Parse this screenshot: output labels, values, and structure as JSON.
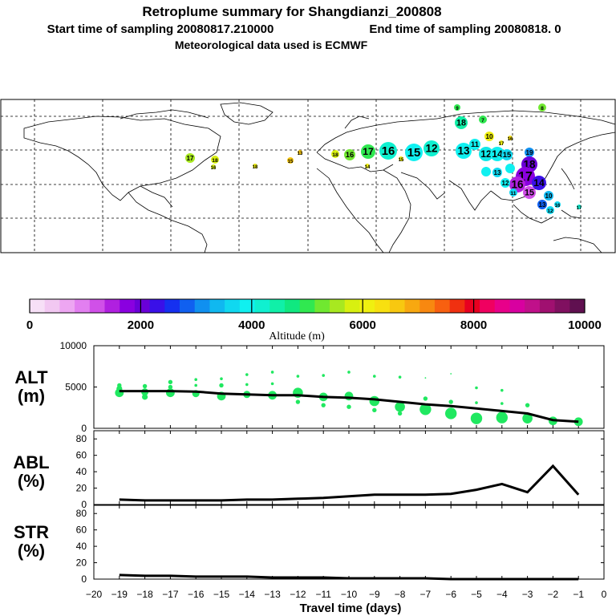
{
  "header": {
    "title": "Retroplume summary for Shangdianzi_200808",
    "start_time": "Start time of sampling 20080817.210000",
    "end_time": "End time of sampling 20080818.      0",
    "met_data": "Meteorological data used is ECMWF"
  },
  "map": {
    "description_labels": [
      "18",
      "17",
      "18",
      "16",
      "15",
      "13",
      "18",
      "16",
      "17",
      "16",
      "15",
      "12",
      "14",
      "15",
      "13",
      "11",
      "12",
      "14",
      "15",
      "10",
      "17",
      "16",
      "18",
      "9",
      "7",
      "8",
      "19",
      "18",
      "17",
      "16",
      "15",
      "14",
      "13",
      "12",
      "11",
      "10",
      "13",
      "12",
      "16",
      "17"
    ]
  },
  "colorbar": {
    "ticks": [
      "0",
      "2000",
      "4000",
      "6000",
      "8000",
      "10000"
    ],
    "label": "Altitude (m)",
    "colors": [
      "#f7e0f7",
      "#f2c8f2",
      "#eda6f2",
      "#e27ff0",
      "#d050e8",
      "#b020e0",
      "#8a00e0",
      "#6a00d8",
      "#3a10e8",
      "#1530f0",
      "#1060f0",
      "#1090f0",
      "#10b8f0",
      "#10d8f0",
      "#10f0f0",
      "#10f0d0",
      "#10f0a8",
      "#10e880",
      "#30e850",
      "#70e830",
      "#a8e820",
      "#d8f010",
      "#f0f010",
      "#f8e010",
      "#f8c810",
      "#f8a810",
      "#f88810",
      "#f86010",
      "#f03010",
      "#e80020",
      "#f00060",
      "#e8008a",
      "#d800a0",
      "#c0108a",
      "#a01070",
      "#801060",
      "#601050"
    ]
  },
  "chart_data": [
    {
      "type": "scatter+line",
      "name": "ALT",
      "ylabel": "ALT\n(m)",
      "ylabel_line1": "ALT",
      "ylabel_line2": "(m)",
      "ylim": [
        0,
        10000
      ],
      "yticks": [
        "0",
        "5000",
        "10000"
      ],
      "x": [
        -19,
        -18,
        -17,
        -16,
        -15,
        -14,
        -13,
        -12,
        -11,
        -10,
        -9,
        -8,
        -7,
        -6,
        -5,
        -4,
        -3,
        -2,
        -1
      ],
      "line_values": [
        4500,
        4500,
        4500,
        4450,
        4200,
        4100,
        4000,
        4000,
        3800,
        3700,
        3500,
        3200,
        2900,
        2700,
        2400,
        2100,
        1800,
        1000,
        800
      ],
      "points": [
        {
          "x": -19,
          "y": 4300,
          "s": 6
        },
        {
          "x": -19,
          "y": 4800,
          "s": 4
        },
        {
          "x": -19,
          "y": 5200,
          "s": 3
        },
        {
          "x": -18,
          "y": 3800,
          "s": 4
        },
        {
          "x": -18,
          "y": 4400,
          "s": 5
        },
        {
          "x": -18,
          "y": 5100,
          "s": 3
        },
        {
          "x": -17,
          "y": 4300,
          "s": 6
        },
        {
          "x": -17,
          "y": 5000,
          "s": 3
        },
        {
          "x": -17,
          "y": 5600,
          "s": 3
        },
        {
          "x": -16,
          "y": 4200,
          "s": 5
        },
        {
          "x": -16,
          "y": 5200,
          "s": 2
        },
        {
          "x": -16,
          "y": 5900,
          "s": 2
        },
        {
          "x": -15,
          "y": 3900,
          "s": 6
        },
        {
          "x": -15,
          "y": 5200,
          "s": 3
        },
        {
          "x": -15,
          "y": 6000,
          "s": 2
        },
        {
          "x": -14,
          "y": 4100,
          "s": 5
        },
        {
          "x": -14,
          "y": 5300,
          "s": 2
        },
        {
          "x": -14,
          "y": 6500,
          "s": 2
        },
        {
          "x": -13,
          "y": 4000,
          "s": 6
        },
        {
          "x": -13,
          "y": 5400,
          "s": 2
        },
        {
          "x": -13,
          "y": 6800,
          "s": 2
        },
        {
          "x": -12,
          "y": 4300,
          "s": 7
        },
        {
          "x": -12,
          "y": 3200,
          "s": 3
        },
        {
          "x": -12,
          "y": 6300,
          "s": 2
        },
        {
          "x": -11,
          "y": 3800,
          "s": 6
        },
        {
          "x": -11,
          "y": 2800,
          "s": 3
        },
        {
          "x": -11,
          "y": 6400,
          "s": 2
        },
        {
          "x": -10,
          "y": 3900,
          "s": 6
        },
        {
          "x": -10,
          "y": 2600,
          "s": 3
        },
        {
          "x": -10,
          "y": 6800,
          "s": 2
        },
        {
          "x": -9,
          "y": 3300,
          "s": 7
        },
        {
          "x": -9,
          "y": 2200,
          "s": 3
        },
        {
          "x": -9,
          "y": 6300,
          "s": 2
        },
        {
          "x": -8,
          "y": 2600,
          "s": 7
        },
        {
          "x": -8,
          "y": 1800,
          "s": 3
        },
        {
          "x": -8,
          "y": 6200,
          "s": 2
        },
        {
          "x": -7,
          "y": 2300,
          "s": 8
        },
        {
          "x": -7,
          "y": 3600,
          "s": 3
        },
        {
          "x": -7,
          "y": 6100,
          "s": 1
        },
        {
          "x": -6,
          "y": 1800,
          "s": 8
        },
        {
          "x": -6,
          "y": 3200,
          "s": 3
        },
        {
          "x": -6,
          "y": 6600,
          "s": 1
        },
        {
          "x": -5,
          "y": 1200,
          "s": 8
        },
        {
          "x": -5,
          "y": 3100,
          "s": 2
        },
        {
          "x": -5,
          "y": 4900,
          "s": 2
        },
        {
          "x": -4,
          "y": 1300,
          "s": 8
        },
        {
          "x": -4,
          "y": 3000,
          "s": 2
        },
        {
          "x": -4,
          "y": 4600,
          "s": 2
        },
        {
          "x": -3,
          "y": 1200,
          "s": 7
        },
        {
          "x": -3,
          "y": 2800,
          "s": 3
        },
        {
          "x": -2,
          "y": 900,
          "s": 6
        },
        {
          "x": -1,
          "y": 800,
          "s": 6
        }
      ]
    },
    {
      "type": "line",
      "name": "ABL",
      "ylabel_line1": "ABL",
      "ylabel_line2": "(%)",
      "ylim": [
        0,
        90
      ],
      "yticks": [
        "0",
        "20",
        "40",
        "60",
        "80"
      ],
      "x": [
        -19,
        -18,
        -17,
        -16,
        -15,
        -14,
        -13,
        -12,
        -11,
        -10,
        -9,
        -8,
        -7,
        -6,
        -5,
        -4,
        -3,
        -2,
        -1
      ],
      "values": [
        6,
        5,
        5,
        5,
        5,
        6,
        6,
        7,
        8,
        10,
        12,
        12,
        12,
        13,
        18,
        25,
        15,
        47,
        12
      ]
    },
    {
      "type": "line",
      "name": "STR",
      "ylabel_line1": "STR",
      "ylabel_line2": "(%)",
      "ylim": [
        0,
        90
      ],
      "yticks": [
        "0",
        "20",
        "40",
        "60",
        "80"
      ],
      "x": [
        -19,
        -18,
        -17,
        -16,
        -15,
        -14,
        -13,
        -12,
        -11,
        -10,
        -9,
        -8,
        -7,
        -6,
        -5,
        -4,
        -3,
        -2,
        -1
      ],
      "values": [
        5,
        4,
        4,
        3,
        3,
        3,
        2,
        2,
        2,
        1,
        1,
        1,
        1,
        0,
        0,
        0,
        0,
        0,
        0
      ]
    }
  ],
  "xaxis": {
    "ticks": [
      "−20",
      "−19",
      "−18",
      "−17",
      "−16",
      "−15",
      "−14",
      "−13",
      "−12",
      "−11",
      "−10",
      "−9",
      "−8",
      "−7",
      "−6",
      "−5",
      "−4",
      "−3",
      "−2",
      "−1",
      "0"
    ],
    "tick_values": [
      -20,
      -19,
      -18,
      -17,
      -16,
      -15,
      -14,
      -13,
      -12,
      -11,
      -10,
      -9,
      -8,
      -7,
      -6,
      -5,
      -4,
      -3,
      -2,
      -1,
      0
    ],
    "label": "Travel time (days)"
  }
}
